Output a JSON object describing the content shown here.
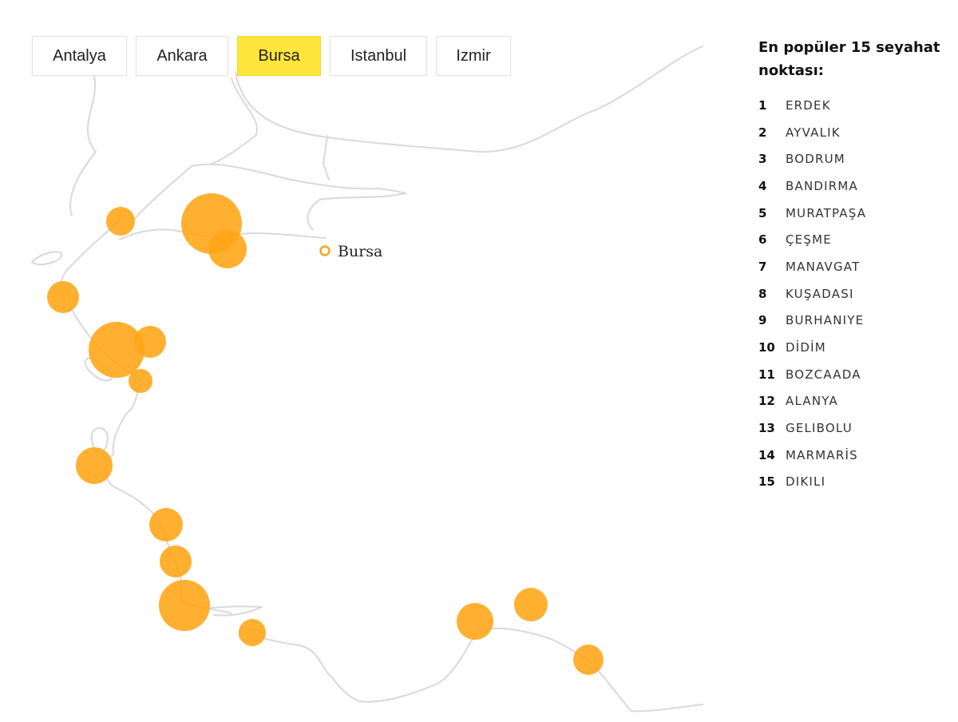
{
  "tabs": [
    {
      "label": "Antalya",
      "active": false
    },
    {
      "label": "Ankara",
      "active": false
    },
    {
      "label": "Bursa",
      "active": true
    },
    {
      "label": "Istanbul",
      "active": false
    },
    {
      "label": "Izmir",
      "active": false
    }
  ],
  "selected_city": {
    "label": "Bursa"
  },
  "ranking": {
    "title": "En popüler 15 seyahat noktası:",
    "items": [
      {
        "rank": "1",
        "name": "ERDEK"
      },
      {
        "rank": "2",
        "name": "AYVALIK"
      },
      {
        "rank": "3",
        "name": "BODRUM"
      },
      {
        "rank": "4",
        "name": "BANDIRMA"
      },
      {
        "rank": "5",
        "name": "MURATPAŞA"
      },
      {
        "rank": "6",
        "name": "ÇEŞME"
      },
      {
        "rank": "7",
        "name": "MANAVGAT"
      },
      {
        "rank": "8",
        "name": "KUŞADASI"
      },
      {
        "rank": "9",
        "name": "BURHANIYE"
      },
      {
        "rank": "10",
        "name": "DİDİM"
      },
      {
        "rank": "11",
        "name": "BOZCAADA"
      },
      {
        "rank": "12",
        "name": "ALANYA"
      },
      {
        "rank": "13",
        "name": "GELIBOLU"
      },
      {
        "rank": "14",
        "name": "MARMARİS"
      },
      {
        "rank": "15",
        "name": "DIKILI"
      }
    ]
  },
  "colors": {
    "bubble": "#ffa514",
    "active_tab": "#ffe53b",
    "coastline": "#d8d8e0",
    "origin_marker": "#f5a623"
  }
}
